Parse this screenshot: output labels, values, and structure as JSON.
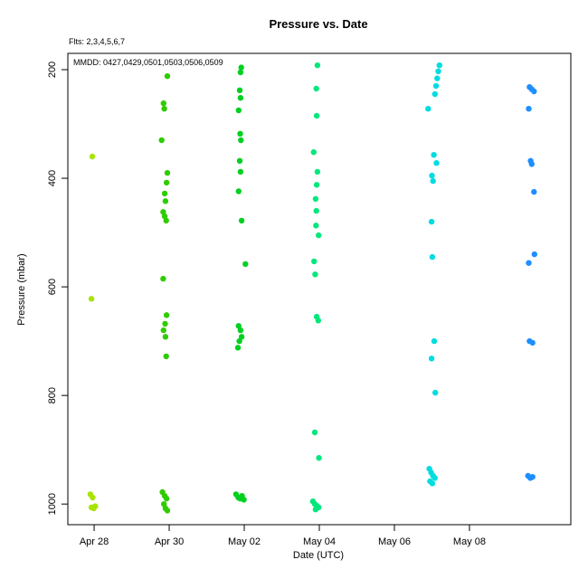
{
  "chart_data": {
    "type": "scatter",
    "title": "Pressure  vs. Date",
    "xlabel": "Date (UTC)",
    "ylabel": "Pressure (mbar)",
    "annotations": {
      "flights": "Flts: 2,3,4,5,6,7",
      "mmdd": "MMDD: 0427,0429,0501,0503,0506,0509"
    },
    "x_ticks": [
      {
        "day": 1,
        "label": "Apr 28"
      },
      {
        "day": 3,
        "label": "Apr 30"
      },
      {
        "day": 5,
        "label": "May 02"
      },
      {
        "day": 7,
        "label": "May 04"
      },
      {
        "day": 9,
        "label": "May 06"
      },
      {
        "day": 11,
        "label": "May 08"
      }
    ],
    "y_ticks": [
      200,
      400,
      600,
      800,
      1000
    ],
    "x_range_days": [
      0.3,
      13.7
    ],
    "y_range_mbar": [
      170,
      1038
    ],
    "y_axis_reversed": true,
    "grid": false,
    "legend": "none",
    "point_radius": 3.2,
    "series": [
      {
        "name": "Flt 2 (0427)",
        "color": "#a8e400",
        "points": [
          [
            0.95,
            360
          ],
          [
            0.93,
            622
          ],
          [
            0.9,
            982
          ],
          [
            0.96,
            988
          ],
          [
            0.93,
            1006
          ],
          [
            0.99,
            1008
          ],
          [
            1.03,
            1004
          ]
        ]
      },
      {
        "name": "Flt 3 (0429)",
        "color": "#2fcc00",
        "points": [
          [
            2.95,
            212
          ],
          [
            2.85,
            262
          ],
          [
            2.87,
            272
          ],
          [
            2.8,
            330
          ],
          [
            2.95,
            390
          ],
          [
            2.93,
            408
          ],
          [
            2.88,
            428
          ],
          [
            2.9,
            442
          ],
          [
            2.84,
            462
          ],
          [
            2.88,
            470
          ],
          [
            2.92,
            478
          ],
          [
            2.84,
            585
          ],
          [
            2.93,
            652
          ],
          [
            2.89,
            668
          ],
          [
            2.85,
            680
          ],
          [
            2.9,
            692
          ],
          [
            2.92,
            728
          ],
          [
            2.82,
            978
          ],
          [
            2.88,
            985
          ],
          [
            2.93,
            990
          ],
          [
            2.86,
            1000
          ],
          [
            2.9,
            1008
          ],
          [
            2.95,
            1012
          ]
        ]
      },
      {
        "name": "Flt 4 (0501)",
        "color": "#00d020",
        "points": [
          [
            4.92,
            196
          ],
          [
            4.9,
            205
          ],
          [
            4.88,
            238
          ],
          [
            4.9,
            252
          ],
          [
            4.85,
            275
          ],
          [
            4.89,
            318
          ],
          [
            4.91,
            330
          ],
          [
            4.88,
            368
          ],
          [
            4.9,
            388
          ],
          [
            4.85,
            424
          ],
          [
            4.93,
            478
          ],
          [
            5.03,
            558
          ],
          [
            4.85,
            672
          ],
          [
            4.9,
            680
          ],
          [
            4.93,
            692
          ],
          [
            4.87,
            700
          ],
          [
            4.83,
            712
          ],
          [
            4.78,
            982
          ],
          [
            4.84,
            988
          ],
          [
            4.89,
            990
          ],
          [
            4.94,
            985
          ],
          [
            4.99,
            992
          ]
        ]
      },
      {
        "name": "Flt 5 (0503)",
        "color": "#00e87c",
        "points": [
          [
            6.95,
            192
          ],
          [
            6.92,
            235
          ],
          [
            6.93,
            285
          ],
          [
            6.85,
            352
          ],
          [
            6.95,
            388
          ],
          [
            6.93,
            412
          ],
          [
            6.9,
            438
          ],
          [
            6.92,
            460
          ],
          [
            6.91,
            487
          ],
          [
            6.98,
            505
          ],
          [
            6.86,
            553
          ],
          [
            6.89,
            577
          ],
          [
            6.93,
            655
          ],
          [
            6.97,
            662
          ],
          [
            6.88,
            868
          ],
          [
            6.99,
            915
          ],
          [
            6.83,
            995
          ],
          [
            6.88,
            1000
          ],
          [
            6.93,
            1003
          ],
          [
            6.98,
            1006
          ],
          [
            6.9,
            1010
          ]
        ]
      },
      {
        "name": "Flt 6 (0506)",
        "color": "#00dce0",
        "points": [
          [
            10.2,
            192
          ],
          [
            10.17,
            203
          ],
          [
            10.14,
            216
          ],
          [
            10.11,
            230
          ],
          [
            10.08,
            245
          ],
          [
            9.9,
            272
          ],
          [
            10.05,
            357
          ],
          [
            10.12,
            372
          ],
          [
            10.0,
            395
          ],
          [
            10.03,
            405
          ],
          [
            9.99,
            480
          ],
          [
            10.01,
            545
          ],
          [
            10.06,
            700
          ],
          [
            9.99,
            732
          ],
          [
            10.09,
            795
          ],
          [
            9.93,
            935
          ],
          [
            9.98,
            942
          ],
          [
            10.03,
            948
          ],
          [
            10.08,
            952
          ],
          [
            9.95,
            958
          ],
          [
            10.01,
            962
          ]
        ]
      },
      {
        "name": "Flt 7 (0509)",
        "color": "#1e8fff",
        "points": [
          [
            12.6,
            232
          ],
          [
            12.66,
            236
          ],
          [
            12.72,
            240
          ],
          [
            12.58,
            272
          ],
          [
            12.63,
            368
          ],
          [
            12.66,
            374
          ],
          [
            12.72,
            425
          ],
          [
            12.73,
            540
          ],
          [
            12.58,
            556
          ],
          [
            12.6,
            700
          ],
          [
            12.68,
            703
          ],
          [
            12.56,
            948
          ],
          [
            12.62,
            952
          ],
          [
            12.68,
            950
          ]
        ]
      }
    ]
  }
}
